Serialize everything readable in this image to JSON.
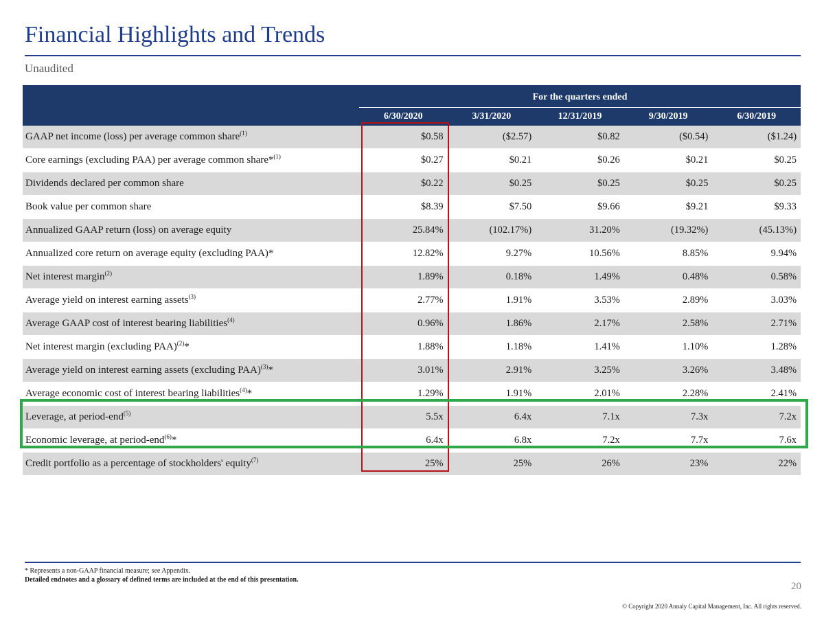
{
  "page": {
    "title": "Financial Highlights and Trends",
    "subtitle": "Unaudited",
    "page_number": "20",
    "copyright": "© Copyright 2020 Annaly Capital Management, Inc.  All rights reserved.",
    "footnote_1": "*  Represents a non-GAAP financial measure; see Appendix.",
    "footnote_2": "Detailed endnotes and a glossary of defined terms are included at the end of this presentation."
  },
  "colors": {
    "title_blue": "#1f3d8c",
    "header_navy": "#1e3a6a",
    "row_shade": "#d9d9d9",
    "highlight_red": "#b3121b",
    "highlight_green": "#2ea84a"
  },
  "table": {
    "group_header": "For the quarters ended",
    "columns": [
      "6/30/2020",
      "3/31/2020",
      "12/31/2019",
      "9/30/2019",
      "6/30/2019"
    ],
    "rows": [
      {
        "label": "GAAP net income (loss) per average common share",
        "sup": "(1)",
        "suffix": "",
        "values": [
          "$0.58",
          "($2.57)",
          "$0.82",
          "($0.54)",
          "($1.24)"
        ]
      },
      {
        "label": "Core earnings  (excluding PAA) per average common share*",
        "sup": "(1)",
        "suffix": "",
        "values": [
          "$0.27",
          "$0.21",
          "$0.26",
          "$0.21",
          "$0.25"
        ]
      },
      {
        "label": "Dividends declared per common share",
        "sup": "",
        "suffix": "",
        "values": [
          "$0.22",
          "$0.25",
          "$0.25",
          "$0.25",
          "$0.25"
        ]
      },
      {
        "label": "Book value per common share",
        "sup": "",
        "suffix": "",
        "values": [
          "$8.39",
          "$7.50",
          "$9.66",
          "$9.21",
          "$9.33"
        ]
      },
      {
        "label": "Annualized GAAP return (loss) on average equity",
        "sup": "",
        "suffix": "",
        "values": [
          "25.84%",
          "(102.17%)",
          "31.20%",
          "(19.32%)",
          "(45.13%)"
        ]
      },
      {
        "label": "Annualized core return on average equity (excluding PAA)*",
        "sup": "",
        "suffix": "",
        "values": [
          "12.82%",
          "9.27%",
          "10.56%",
          "8.85%",
          "9.94%"
        ]
      },
      {
        "label": "Net interest margin",
        "sup": "(2)",
        "suffix": "",
        "values": [
          "1.89%",
          "0.18%",
          "1.49%",
          "0.48%",
          "0.58%"
        ]
      },
      {
        "label": "Average yield on interest earning assets",
        "sup": "(3)",
        "suffix": "",
        "values": [
          "2.77%",
          "1.91%",
          "3.53%",
          "2.89%",
          "3.03%"
        ]
      },
      {
        "label": "Average GAAP cost of interest bearing liabilities",
        "sup": "(4)",
        "suffix": "",
        "values": [
          "0.96%",
          "1.86%",
          "2.17%",
          "2.58%",
          "2.71%"
        ]
      },
      {
        "label": "Net interest margin (excluding PAA)",
        "sup": "(2)",
        "suffix": "*",
        "values": [
          "1.88%",
          "1.18%",
          "1.41%",
          "1.10%",
          "1.28%"
        ]
      },
      {
        "label": "Average yield on interest earning assets (excluding PAA)",
        "sup": "(3)",
        "suffix": "*",
        "values": [
          "3.01%",
          "2.91%",
          "3.25%",
          "3.26%",
          "3.48%"
        ]
      },
      {
        "label": "Average economic cost of interest bearing liabilities",
        "sup": "(4)",
        "suffix": "*",
        "values": [
          "1.29%",
          "1.91%",
          "2.01%",
          "2.28%",
          "2.41%"
        ]
      },
      {
        "label": "Leverage, at period-end",
        "sup": "(5)",
        "suffix": "",
        "values": [
          "5.5x",
          "6.4x",
          "7.1x",
          "7.3x",
          "7.2x"
        ]
      },
      {
        "label": "Economic leverage, at period-end",
        "sup": "(6)",
        "suffix": "*",
        "values": [
          "6.4x",
          "6.8x",
          "7.2x",
          "7.7x",
          "7.6x"
        ]
      },
      {
        "label": "Credit portfolio as a percentage of stockholders' equity",
        "sup": "(7)",
        "suffix": "",
        "values": [
          "25%",
          "25%",
          "26%",
          "23%",
          "22%"
        ]
      }
    ]
  }
}
